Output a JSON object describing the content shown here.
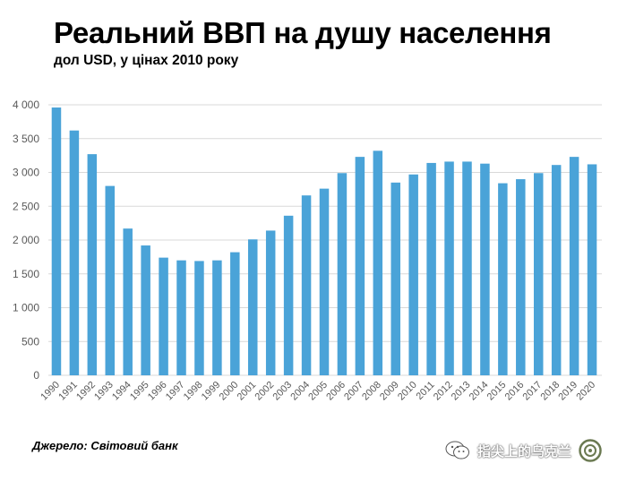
{
  "header": {
    "title": "Реальний ВВП на душу населення",
    "subtitle": "дол USD,  у цінах 2010 року"
  },
  "footer": {
    "source": "Джерело: Світовий банк",
    "watermark_text": "指尖上的乌克兰",
    "watermark_icons": [
      "wechat-icon",
      "round-logo-icon"
    ]
  },
  "colors": {
    "bar": "#4aa3d8",
    "grid": "#d9d9d9",
    "axis_text": "#595959"
  },
  "chart_data": {
    "type": "bar",
    "title": "Реальний ВВП на душу населення",
    "subtitle": "дол USD,  у цінах 2010 року",
    "xlabel": "",
    "ylabel": "",
    "ylim": [
      0,
      4000
    ],
    "yticks": [
      0,
      500,
      1000,
      1500,
      2000,
      2500,
      3000,
      3500,
      4000
    ],
    "ytick_labels": [
      "0",
      "500",
      "1 000",
      "1 500",
      "2 000",
      "2 500",
      "3 000",
      "3 500",
      "4 000"
    ],
    "grid": true,
    "legend": "none",
    "categories": [
      "1990",
      "1991",
      "1992",
      "1993",
      "1994",
      "1995",
      "1996",
      "1997",
      "1998",
      "1999",
      "2000",
      "2001",
      "2002",
      "2003",
      "2004",
      "2005",
      "2006",
      "2007",
      "2008",
      "2009",
      "2010",
      "2011",
      "2012",
      "2013",
      "2014",
      "2015",
      "2016",
      "2017",
      "2018",
      "2019",
      "2020"
    ],
    "values": [
      3960,
      3620,
      3270,
      2800,
      2170,
      1920,
      1740,
      1700,
      1690,
      1700,
      1820,
      2010,
      2140,
      2360,
      2660,
      2760,
      2990,
      3230,
      3320,
      2850,
      2970,
      3140,
      3160,
      3160,
      3130,
      2840,
      2900,
      2990,
      3110,
      3230,
      3120
    ]
  }
}
